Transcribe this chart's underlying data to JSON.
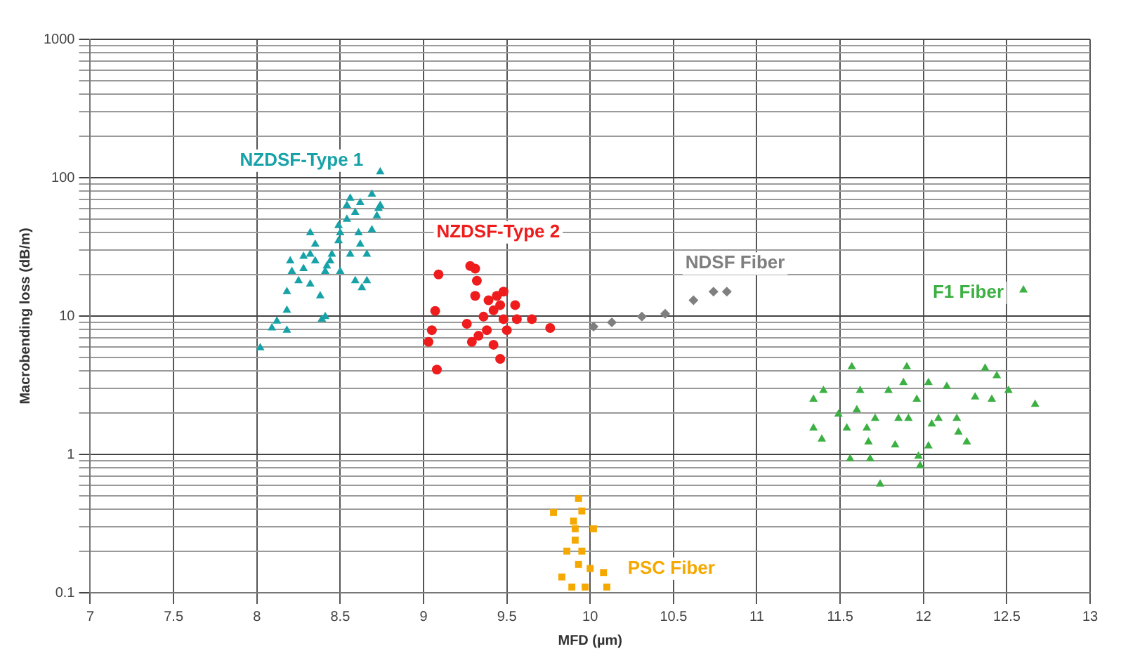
{
  "chart_data": {
    "type": "scatter",
    "xlabel": "MFD (µm)",
    "ylabel": "Macrobending loss (dB/m)",
    "log": "y",
    "grid": true,
    "legend": false,
    "xlim": [
      7,
      13
    ],
    "xticks": [
      7,
      7.5,
      8,
      8.5,
      9,
      9.5,
      10,
      10.5,
      11,
      11.5,
      12,
      12.5,
      13
    ],
    "ylim": [
      0.1,
      1000
    ],
    "yticks": [
      0.1,
      {
        "value": 0.2,
        "label": null
      },
      {
        "value": 0.3,
        "label": null
      },
      {
        "value": 0.4,
        "label": null
      },
      {
        "value": 0.5,
        "label": null
      },
      {
        "value": 0.6,
        "label": null
      },
      {
        "value": 0.7,
        "label": null
      },
      {
        "value": 0.8,
        "label": null
      },
      {
        "value": 0.9,
        "label": null
      },
      1,
      {
        "value": 2,
        "label": null
      },
      {
        "value": 3,
        "label": null
      },
      {
        "value": 4,
        "label": null
      },
      {
        "value": 5,
        "label": null
      },
      {
        "value": 6,
        "label": null
      },
      {
        "value": 7,
        "label": null
      },
      {
        "value": 8,
        "label": null
      },
      {
        "value": 9,
        "label": null
      },
      10,
      {
        "value": 20,
        "label": null
      },
      {
        "value": 30,
        "label": null
      },
      {
        "value": 40,
        "label": null
      },
      {
        "value": 50,
        "label": null
      },
      {
        "value": 60,
        "label": null
      },
      {
        "value": 70,
        "label": null
      },
      {
        "value": 80,
        "label": null
      },
      {
        "value": 90,
        "label": null
      },
      100,
      {
        "value": 200,
        "label": null
      },
      {
        "value": 300,
        "label": null
      },
      {
        "value": 400,
        "label": null
      },
      {
        "value": 500,
        "label": null
      },
      {
        "value": 600,
        "label": null
      },
      {
        "value": 700,
        "label": null
      },
      {
        "value": 800,
        "label": null
      },
      {
        "value": 900,
        "label": null
      },
      1000
    ],
    "series": [
      {
        "name": "NZDSF-Type 1",
        "color": "#17a2a8",
        "marker": "triangle",
        "x": [
          8.02,
          8.09,
          8.12,
          8.18,
          8.18,
          8.18,
          8.21,
          8.2,
          8.25,
          8.28,
          8.32,
          8.32,
          8.35,
          8.39,
          8.41,
          8.38,
          8.42,
          8.45,
          8.49,
          8.49,
          8.5,
          8.54,
          8.54,
          8.56,
          8.59,
          8.62,
          8.61,
          8.62,
          8.66,
          8.66,
          8.63,
          8.59,
          8.69,
          8.73,
          8.74,
          8.74,
          8.72,
          8.5,
          8.44,
          8.35,
          8.28,
          8.32,
          8.41,
          8.69,
          8.56
        ],
        "values": [
          5.9,
          8.2,
          9.2,
          7.9,
          11,
          15,
          21,
          25,
          18,
          22,
          28,
          40,
          33,
          9.5,
          9.9,
          14,
          23,
          28,
          35,
          45,
          40,
          50,
          63,
          71,
          56,
          66,
          40,
          33,
          28,
          18,
          16,
          18,
          76,
          60,
          110,
          63,
          53,
          21,
          25,
          25,
          27,
          17,
          21,
          42,
          28
        ]
      },
      {
        "name": "NZDSF-Type 2",
        "color": "#ee1c1c",
        "marker": "circle",
        "x": [
          9.09,
          9.03,
          9.08,
          9.05,
          9.07,
          9.28,
          9.31,
          9.32,
          9.31,
          9.26,
          9.29,
          9.33,
          9.36,
          9.39,
          9.42,
          9.44,
          9.46,
          9.48,
          9.38,
          9.42,
          9.46,
          9.5,
          9.55,
          9.48,
          9.56,
          9.65,
          9.76
        ],
        "values": [
          20,
          6.5,
          4.1,
          7.9,
          10.9,
          23,
          22,
          18,
          14,
          8.8,
          6.5,
          7.2,
          9.9,
          13,
          11,
          14,
          12,
          9.5,
          7.9,
          6.2,
          4.9,
          7.9,
          12,
          15,
          9.5,
          9.5,
          8.2
        ]
      },
      {
        "name": "NDSF Fiber",
        "color": "#7f7f7f",
        "marker": "diamond",
        "x": [
          10.02,
          10.13,
          10.31,
          10.45,
          10.62,
          10.74,
          10.82
        ],
        "values": [
          8.4,
          9.0,
          9.9,
          10.4,
          13,
          15,
          15
        ]
      },
      {
        "name": "F1 Fiber",
        "color": "#3cb043",
        "marker": "triangle",
        "x": [
          11.57,
          11.9,
          12.37,
          12.6,
          11.34,
          11.4,
          11.34,
          11.39,
          11.49,
          11.54,
          11.56,
          11.6,
          11.62,
          11.67,
          11.68,
          11.74,
          11.71,
          11.79,
          11.83,
          11.88,
          11.91,
          11.96,
          11.97,
          11.98,
          12.03,
          12.05,
          12.09,
          12.14,
          12.2,
          12.21,
          12.26,
          12.31,
          12.41,
          12.44,
          12.51,
          12.67,
          11.66,
          11.85,
          12.03
        ],
        "values": [
          4.3,
          4.3,
          4.2,
          15.4,
          2.5,
          2.9,
          1.55,
          1.29,
          1.95,
          1.55,
          0.93,
          2.1,
          2.9,
          1.23,
          0.93,
          0.61,
          1.82,
          2.9,
          1.17,
          3.3,
          1.82,
          2.5,
          0.97,
          0.83,
          3.3,
          1.66,
          1.82,
          3.1,
          1.82,
          1.45,
          1.23,
          2.6,
          2.5,
          3.7,
          2.9,
          2.3,
          1.55,
          1.82,
          1.15
        ]
      },
      {
        "name": "PSC Fiber",
        "color": "#f5a800",
        "marker": "square",
        "x": [
          9.78,
          9.93,
          9.95,
          9.91,
          10.02,
          9.91,
          9.86,
          9.93,
          10.0,
          10.08,
          9.89,
          9.97,
          10.1,
          9.83,
          9.95,
          9.9
        ],
        "values": [
          0.38,
          0.48,
          0.39,
          0.29,
          0.29,
          0.24,
          0.2,
          0.16,
          0.15,
          0.14,
          0.11,
          0.11,
          0.11,
          0.13,
          0.2,
          0.33
        ]
      }
    ]
  }
}
